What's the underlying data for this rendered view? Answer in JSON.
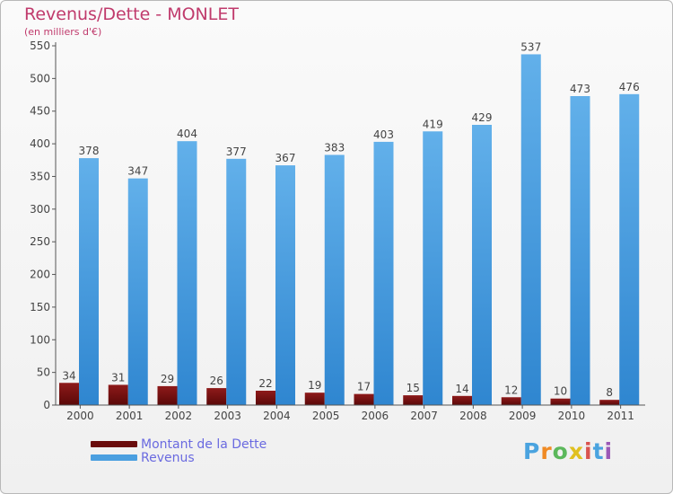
{
  "title": "Revenus/Dette - MONLET",
  "subtitle": "(en milliers d'€)",
  "logo_text": "Proxiti",
  "colors": {
    "debt": "#7a1010",
    "revenue": "#4a9fe0",
    "title": "#c03a6c",
    "legend_text": "#6a6ae0"
  },
  "chart_data": {
    "type": "bar",
    "categories": [
      "2000",
      "2001",
      "2002",
      "2003",
      "2004",
      "2005",
      "2006",
      "2007",
      "2008",
      "2009",
      "2010",
      "2011"
    ],
    "series": [
      {
        "name": "Montant de la Dette",
        "values": [
          34,
          31,
          29,
          26,
          22,
          19,
          17,
          15,
          14,
          12,
          10,
          8
        ]
      },
      {
        "name": "Revenus",
        "values": [
          378,
          347,
          404,
          377,
          367,
          383,
          403,
          419,
          429,
          537,
          473,
          476
        ]
      }
    ],
    "ylim": [
      0,
      550
    ],
    "yticks": [
      0,
      50,
      100,
      150,
      200,
      250,
      300,
      350,
      400,
      450,
      500,
      550
    ],
    "grid": false,
    "legend_position": "bottom-left"
  }
}
